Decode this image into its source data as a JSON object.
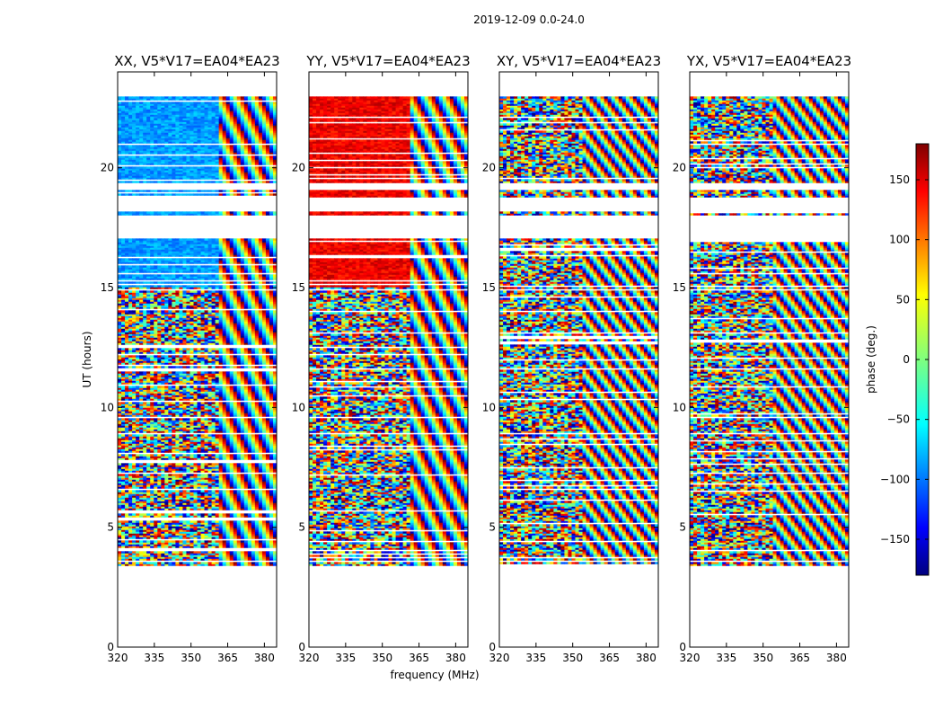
{
  "chart_data": {
    "type": "heatmap",
    "suptitle": "2019-12-09 0.0-24.0",
    "xlabel": "frequency (MHz)",
    "ylabel": "UT (hours)",
    "xlim": [
      320,
      385
    ],
    "ylim": [
      0,
      24
    ],
    "xticks": [
      320,
      335,
      350,
      365,
      380
    ],
    "yticks": [
      0,
      5,
      10,
      15,
      20
    ],
    "colorbar": {
      "label": "phase (deg.)",
      "range": [
        -180,
        180
      ],
      "ticks": [
        -150,
        -100,
        -50,
        0,
        50,
        100,
        150
      ],
      "tick_labels": [
        "−150",
        "−100",
        "−50",
        "0",
        "50",
        "100",
        "150"
      ],
      "colormap": "jet",
      "colors": [
        "#00007f",
        "#0000ff",
        "#007fff",
        "#00ffff",
        "#7fff7f",
        "#ffff00",
        "#ff7f00",
        "#ff0000",
        "#7f0000"
      ]
    },
    "data_coverage_hours": [
      3.4,
      22.9
    ],
    "panels": [
      {
        "title": "XX, V5*V17=EA04*EA23",
        "polarization": "XX",
        "mean_phase": -80
      },
      {
        "title": "YY, V5*V17=EA04*EA23",
        "polarization": "YY",
        "mean_phase": 140
      },
      {
        "title": "XY, V5*V17=EA04*EA23",
        "polarization": "XY",
        "mean_phase": 0
      },
      {
        "title": "YX, V5*V17=EA04*EA23",
        "polarization": "YX",
        "mean_phase": 0
      }
    ]
  }
}
